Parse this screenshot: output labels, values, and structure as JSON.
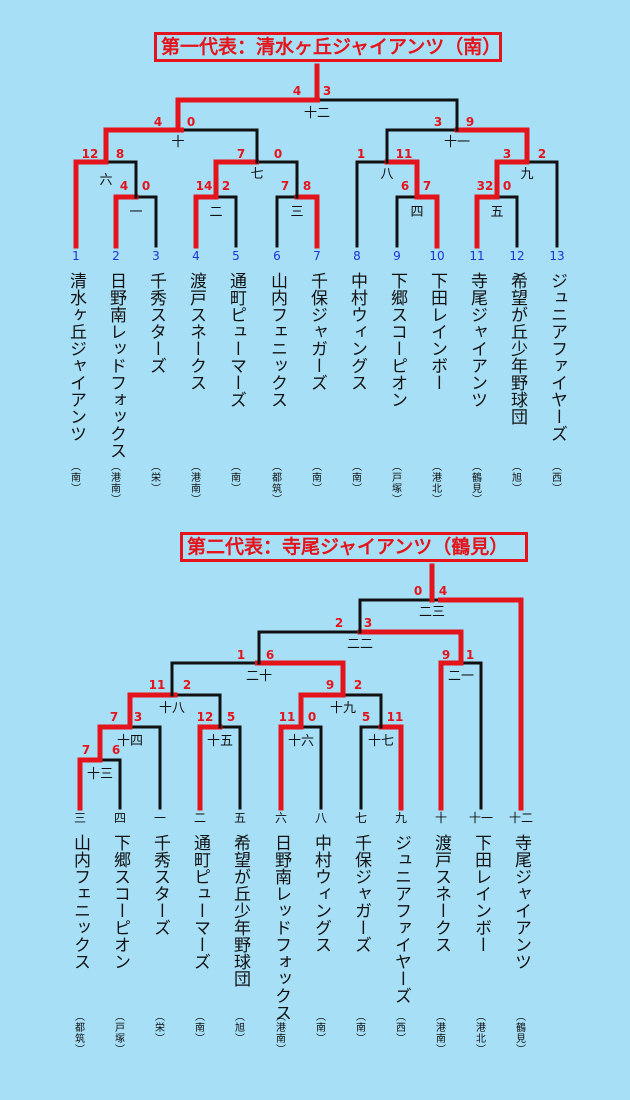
{
  "bracket1": {
    "title": "第一代表：清水ヶ丘ジャイアンツ（南）",
    "teams": [
      {
        "no": "1",
        "name": "清水ヶ丘ジャイアンツ",
        "area": "南",
        "red": true
      },
      {
        "no": "2",
        "name": "日野南レッドフォックス",
        "area": "港南",
        "red": true
      },
      {
        "no": "3",
        "name": "千秀スターズ",
        "area": "栄",
        "red": false
      },
      {
        "no": "4",
        "name": "渡戸スネークス",
        "area": "港南",
        "red": true
      },
      {
        "no": "5",
        "name": "通町ピューマーズ",
        "area": "南",
        "red": false
      },
      {
        "no": "6",
        "name": "山内フェニックス",
        "area": "都筑",
        "red": false
      },
      {
        "no": "7",
        "name": "千保ジャガーズ",
        "area": "南",
        "red": true
      },
      {
        "no": "8",
        "name": "中村ウィングス",
        "area": "南",
        "red": false
      },
      {
        "no": "9",
        "name": "下郷スコーピオン",
        "area": "戸塚",
        "red": false
      },
      {
        "no": "10",
        "name": "下田レインボー",
        "area": "港北",
        "red": true
      },
      {
        "no": "11",
        "name": "寺尾ジャイアンツ",
        "area": "鶴見",
        "red": true
      },
      {
        "no": "12",
        "name": "希望が丘少年野球団",
        "area": "旭",
        "red": false
      },
      {
        "no": "13",
        "name": "ジュニアファイヤーズ",
        "area": "西",
        "red": false
      }
    ],
    "matches": [
      {
        "label": "一",
        "ls": "4",
        "rs": "0"
      },
      {
        "label": "二",
        "ls": "14",
        "rs": "2"
      },
      {
        "label": "三",
        "ls": "7",
        "rs": "8"
      },
      {
        "label": "四",
        "ls": "6",
        "rs": "7"
      },
      {
        "label": "五",
        "ls": "32",
        "rs": "0"
      },
      {
        "label": "六",
        "ls": "12",
        "rs": "8"
      },
      {
        "label": "七",
        "ls": "7",
        "rs": "0"
      },
      {
        "label": "八",
        "ls": "1",
        "rs": "11"
      },
      {
        "label": "九",
        "ls": "3",
        "rs": "2"
      },
      {
        "label": "十",
        "ls": "4",
        "rs": "0"
      },
      {
        "label": "十一",
        "ls": "3",
        "rs": "9"
      },
      {
        "label": "十二",
        "ls": "4",
        "rs": "3"
      }
    ]
  },
  "bracket2": {
    "title": "第二代表：寺尾ジャイアンツ（鶴見）",
    "teams": [
      {
        "no": "三",
        "name": "山内フェニックス",
        "area": "都筑",
        "red": true
      },
      {
        "no": "四",
        "name": "下郷スコーピオン",
        "area": "戸塚",
        "red": false
      },
      {
        "no": "一",
        "name": "千秀スターズ",
        "area": "栄",
        "red": false
      },
      {
        "no": "二",
        "name": "通町ピューマーズ",
        "area": "南",
        "red": true
      },
      {
        "no": "五",
        "name": "希望が丘少年野球団",
        "area": "旭",
        "red": false
      },
      {
        "no": "六",
        "name": "日野南レッドフォックス",
        "area": "港南",
        "red": true
      },
      {
        "no": "八",
        "name": "中村ウィングス",
        "area": "南",
        "red": false
      },
      {
        "no": "七",
        "name": "千保ジャガーズ",
        "area": "南",
        "red": false
      },
      {
        "no": "九",
        "name": "ジュニアファイヤーズ",
        "area": "西",
        "red": true
      },
      {
        "no": "十",
        "name": "渡戸スネークス",
        "area": "港南",
        "red": true
      },
      {
        "no": "十一",
        "name": "下田レインボー",
        "area": "港北",
        "red": false
      },
      {
        "no": "十二",
        "name": "寺尾ジャイアンツ",
        "area": "鶴見",
        "red": true
      }
    ],
    "matches": [
      {
        "label": "十三",
        "ls": "7",
        "rs": "6"
      },
      {
        "label": "十四",
        "ls": "7",
        "rs": "3"
      },
      {
        "label": "十五",
        "ls": "12",
        "rs": "5"
      },
      {
        "label": "十六",
        "ls": "11",
        "rs": "0"
      },
      {
        "label": "十七",
        "ls": "5",
        "rs": "11"
      },
      {
        "label": "十八",
        "ls": "11",
        "rs": "2"
      },
      {
        "label": "十九",
        "ls": "9",
        "rs": "2"
      },
      {
        "label": "二十",
        "ls": "1",
        "rs": "6"
      },
      {
        "label": "二一",
        "ls": "9",
        "rs": "1"
      },
      {
        "label": "二二",
        "ls": "2",
        "rs": "3"
      },
      {
        "label": "二三",
        "ls": "0",
        "rs": "4"
      }
    ]
  }
}
